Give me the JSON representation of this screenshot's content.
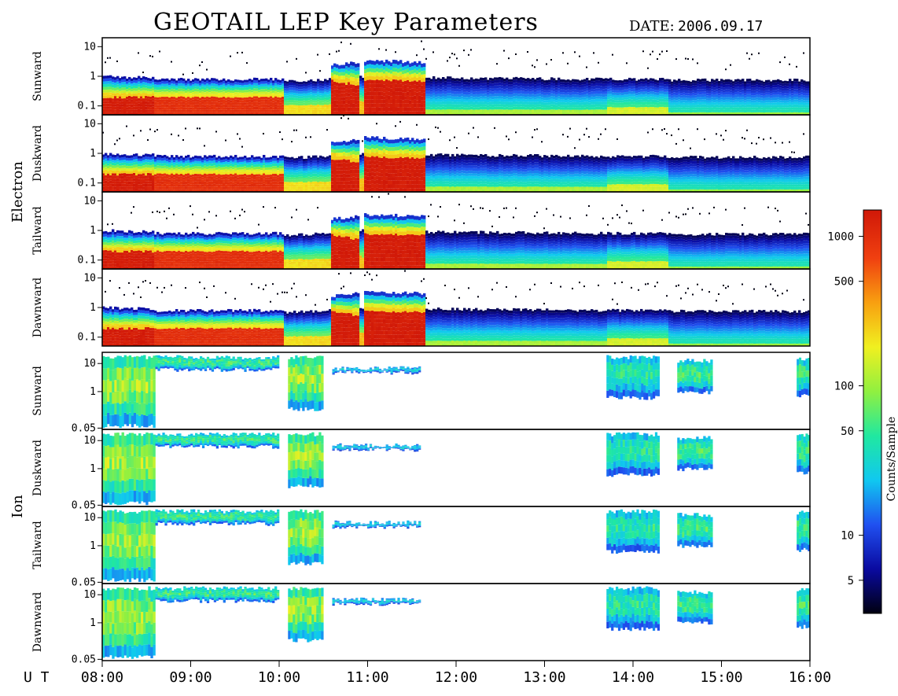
{
  "chart_data": {
    "type": "heatmap",
    "title": "GEOTAIL LEP Key Parameters",
    "date_label": "DATE:",
    "date_value": "2006.09.17",
    "x_axis": {
      "label": "U T",
      "ticks": [
        "08:00",
        "09:00",
        "10:00",
        "11:00",
        "12:00",
        "13:00",
        "14:00",
        "15:00",
        "16:00"
      ],
      "range": [
        8.0,
        16.0
      ]
    },
    "colorbar": {
      "label": "Counts/Sample",
      "scale": "log",
      "range": [
        3,
        1500
      ],
      "ticks": [
        {
          "value": 1000,
          "label": "1000"
        },
        {
          "value": 500,
          "label": "500"
        },
        {
          "value": 100,
          "label": "100"
        },
        {
          "value": 50,
          "label": "50"
        },
        {
          "value": 10,
          "label": "10"
        },
        {
          "value": 5,
          "label": "5"
        }
      ],
      "colors": [
        "#000010",
        "#0a0aa0",
        "#2050f0",
        "#10c8f0",
        "#20e8a0",
        "#90f040",
        "#f0f020",
        "#f8a010",
        "#f04010",
        "#d01808"
      ]
    },
    "groups": [
      {
        "name": "Electron",
        "y_scale": "log",
        "y_range": [
          0.05,
          20
        ],
        "y_ticks": [
          {
            "value": 10,
            "label": "10"
          },
          {
            "value": 1,
            "label": "1"
          },
          {
            "value": 0.1,
            "label": "0.1"
          }
        ],
        "panels": [
          {
            "direction": "Sunward"
          },
          {
            "direction": "Duskward"
          },
          {
            "direction": "Tailward"
          },
          {
            "direction": "Dawnward"
          }
        ]
      },
      {
        "name": "Ion",
        "y_scale": "log",
        "y_range": [
          0.045,
          25
        ],
        "y_ticks": [
          {
            "value": 10,
            "label": "10"
          },
          {
            "value": 1,
            "label": "1"
          },
          {
            "value": 0.05,
            "label": "0.05"
          }
        ],
        "panels": [
          {
            "direction": "Sunward"
          },
          {
            "direction": "Duskward"
          },
          {
            "direction": "Tailward"
          },
          {
            "direction": "Dawnward"
          }
        ]
      }
    ],
    "electron_profile": [
      {
        "t": 8.0,
        "top": 1.0,
        "red_top": 0.22,
        "red_level": 1.0
      },
      {
        "t": 8.6,
        "top": 0.9,
        "red_top": 0.22,
        "red_level": 1.0
      },
      {
        "t": 8.6,
        "top": 0.8,
        "red_top": 0.22,
        "red_level": 0.95
      },
      {
        "t": 10.05,
        "top": 0.8,
        "red_top": 0.22,
        "red_level": 0.95
      },
      {
        "t": 10.05,
        "top": 0.7,
        "red_top": 0.12,
        "red_level": 0.7
      },
      {
        "t": 10.6,
        "top": 0.8,
        "red_top": 0.12,
        "red_level": 0.72
      },
      {
        "t": 10.6,
        "top": 2.5,
        "red_top": 0.8,
        "red_level": 1.0
      },
      {
        "t": 10.9,
        "top": 3.0,
        "red_top": 0.6,
        "red_level": 1.0
      },
      {
        "t": 10.9,
        "top": 1.0,
        "red_top": 0.15,
        "red_level": 0.75
      },
      {
        "t": 10.97,
        "top": 1.0,
        "red_top": 0.15,
        "red_level": 0.75
      },
      {
        "t": 10.97,
        "top": 3.5,
        "red_top": 0.9,
        "red_level": 1.0
      },
      {
        "t": 11.65,
        "top": 3.0,
        "red_top": 0.8,
        "red_level": 1.0
      },
      {
        "t": 11.65,
        "top": 0.9,
        "red_top": 0.08,
        "red_level": 0.6
      },
      {
        "t": 13.7,
        "top": 0.8,
        "red_top": 0.08,
        "red_level": 0.6
      },
      {
        "t": 13.7,
        "top": 0.8,
        "red_top": 0.1,
        "red_level": 0.65
      },
      {
        "t": 14.4,
        "top": 0.8,
        "red_top": 0.1,
        "red_level": 0.65
      },
      {
        "t": 14.4,
        "top": 0.75,
        "red_top": 0.07,
        "red_level": 0.58
      },
      {
        "t": 16.0,
        "top": 0.75,
        "red_top": 0.07,
        "red_level": 0.58
      }
    ],
    "ion_segments": [
      {
        "start": 8.0,
        "end": 8.6,
        "low": 0.05,
        "high": 20,
        "level": 0.55
      },
      {
        "start": 8.6,
        "end": 10.0,
        "low": 5,
        "high": 20,
        "level": 0.45
      },
      {
        "start": 10.1,
        "end": 10.5,
        "low": 0.2,
        "high": 20,
        "level": 0.55
      },
      {
        "start": 10.6,
        "end": 11.6,
        "low": 4,
        "high": 8,
        "level": 0.35
      },
      {
        "start": 13.7,
        "end": 14.3,
        "low": 0.5,
        "high": 20,
        "level": 0.42
      },
      {
        "start": 14.5,
        "end": 14.9,
        "low": 0.8,
        "high": 15,
        "level": 0.45
      },
      {
        "start": 15.85,
        "end": 16.0,
        "low": 0.6,
        "high": 18,
        "level": 0.45
      }
    ]
  }
}
